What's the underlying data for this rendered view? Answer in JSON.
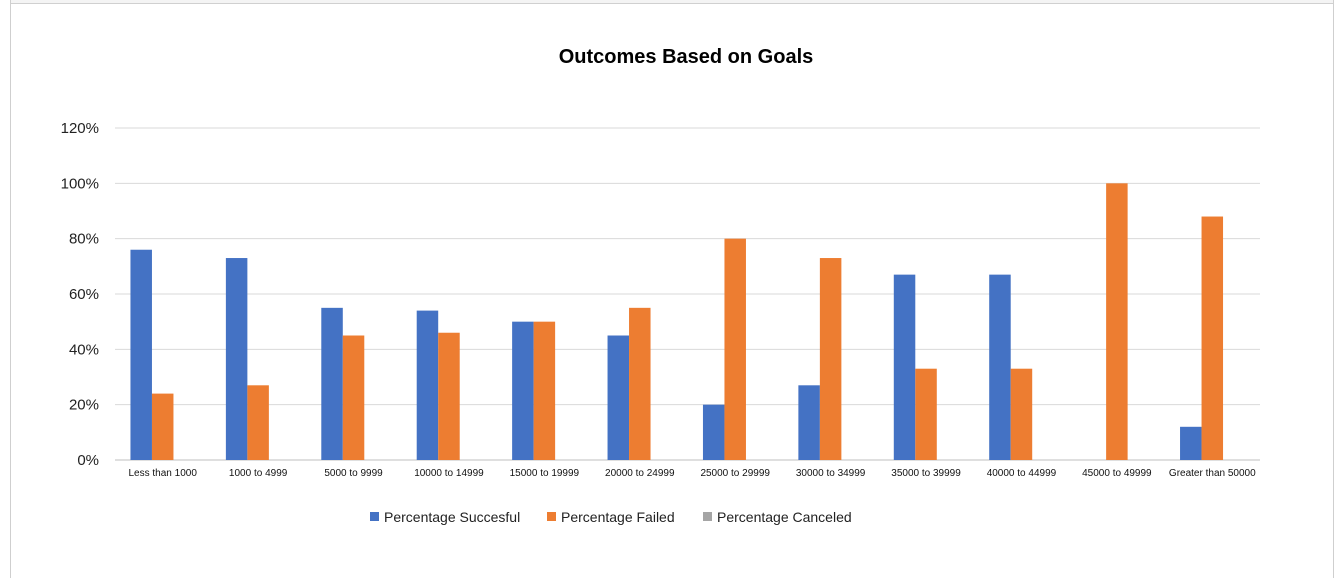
{
  "chart_data": {
    "type": "bar",
    "title": "Outcomes Based on Goals",
    "xlabel": "",
    "ylabel": "",
    "ylim": [
      0,
      1.2
    ],
    "yticks": [
      "0%",
      "20%",
      "40%",
      "60%",
      "80%",
      "100%",
      "120%"
    ],
    "ytick_values": [
      0,
      0.2,
      0.4,
      0.6,
      0.8,
      1.0,
      1.2
    ],
    "grid": true,
    "legend_position": "bottom",
    "categories": [
      "Less than 1000",
      "1000 to 4999",
      "5000 to 9999",
      "10000 to 14999",
      "15000 to 19999",
      "20000 to 24999",
      "25000 to 29999",
      "30000 to 34999",
      "35000 to 39999",
      "40000 to 44999",
      "45000 to 49999",
      "Greater than 50000"
    ],
    "series": [
      {
        "name": "Percentage Succesful",
        "color": "#4472c4",
        "values": [
          0.76,
          0.73,
          0.55,
          0.54,
          0.5,
          0.45,
          0.2,
          0.27,
          0.67,
          0.67,
          0.0,
          0.12
        ]
      },
      {
        "name": "Percentage Failed",
        "color": "#ed7d31",
        "values": [
          0.24,
          0.27,
          0.45,
          0.46,
          0.5,
          0.55,
          0.8,
          0.73,
          0.33,
          0.33,
          1.0,
          0.88
        ]
      },
      {
        "name": "Percentage Canceled",
        "color": "#a5a5a5",
        "values": [
          0,
          0,
          0,
          0,
          0,
          0,
          0,
          0,
          0,
          0,
          0,
          0
        ]
      }
    ]
  }
}
